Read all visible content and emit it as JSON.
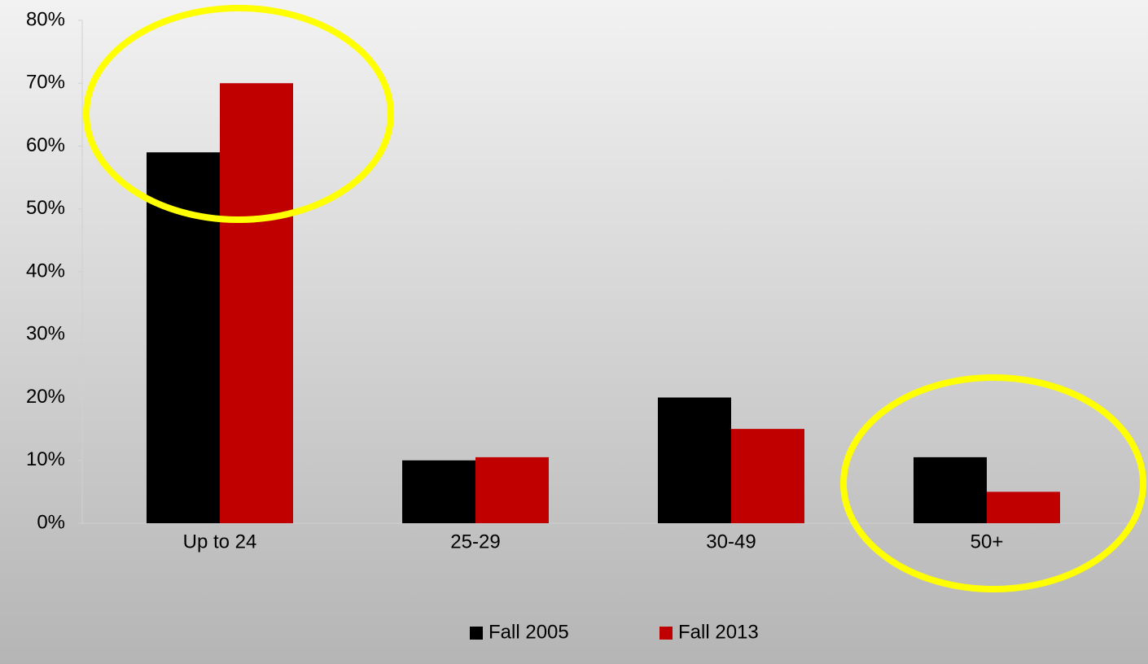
{
  "chart_data": {
    "type": "bar",
    "categories": [
      "Up to 24",
      "25-29",
      "30-49",
      "50+"
    ],
    "series": [
      {
        "name": "Fall 2005",
        "color": "#000000",
        "values": [
          59,
          10,
          20,
          10.5
        ]
      },
      {
        "name": "Fall 2013",
        "color": "#c00000",
        "values": [
          70,
          10.5,
          15,
          5
        ]
      }
    ],
    "ylim": [
      0,
      80
    ],
    "yticks": [
      {
        "value": 0,
        "label": "0%"
      },
      {
        "value": 10,
        "label": "10%"
      },
      {
        "value": 20,
        "label": "20%"
      },
      {
        "value": 30,
        "label": "30%"
      },
      {
        "value": 40,
        "label": "40%"
      },
      {
        "value": 50,
        "label": "50%"
      },
      {
        "value": 60,
        "label": "60%"
      },
      {
        "value": 70,
        "label": "70%"
      },
      {
        "value": 80,
        "label": "80%"
      }
    ],
    "grid": false,
    "legend": "bottom"
  }
}
